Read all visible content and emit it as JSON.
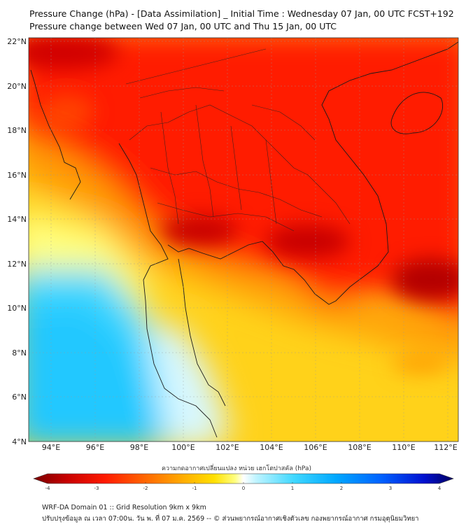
{
  "title": {
    "line1": "Pressure Change (hPa) - [Data Assimilation] _ Initial Time : Wednesday 07 Jan, 00 UTC FCST+192",
    "line2": "Pressure change between Wed 07 Jan, 00 UTC and Thu 15 Jan, 00 UTC"
  },
  "map": {
    "lon_ticks": [
      "94°E",
      "96°E",
      "98°E",
      "100°E",
      "102°E",
      "104°E",
      "106°E",
      "108°E",
      "110°E",
      "112°E"
    ],
    "lat_ticks": [
      "22°N",
      "20°N",
      "18°N",
      "16°N",
      "14°N",
      "12°N",
      "10°N",
      "8°N",
      "6°N",
      "4°N"
    ],
    "lon_range": [
      93,
      112.5
    ],
    "lat_range": [
      4,
      22.2
    ],
    "grid": true
  },
  "colorbar": {
    "caption": "ความกดอากาศเปลี่ยนแปลง หน่วย เฮกโตปาสคัล (hPa)",
    "range": [
      -4,
      4
    ],
    "ticks": [
      "-4",
      "-3",
      "-2",
      "-1",
      "0",
      "1",
      "2",
      "3",
      "4"
    ],
    "colors": [
      "#7a0000",
      "#c80000",
      "#ff1a00",
      "#ff6a00",
      "#ffb000",
      "#ffe000",
      "#ffff80",
      "#ffffff",
      "#bff4ff",
      "#40d8ff",
      "#00a8ff",
      "#0060ff",
      "#0010d0",
      "#000060"
    ]
  },
  "footer": {
    "line1": "WRF-DA Domain 01 :: Grid Resolution 9km x 9km",
    "line2": "ปรับปรุงข้อมูล ณ เวลา 07:00น. วัน พ. ที่ 07 ม.ค. 2569 -- © ส่วนพยากรณ์อากาศเชิงตัวเลข กองพยากรณ์อากาศ กรมอุตุนิยมวิทยา"
  }
}
